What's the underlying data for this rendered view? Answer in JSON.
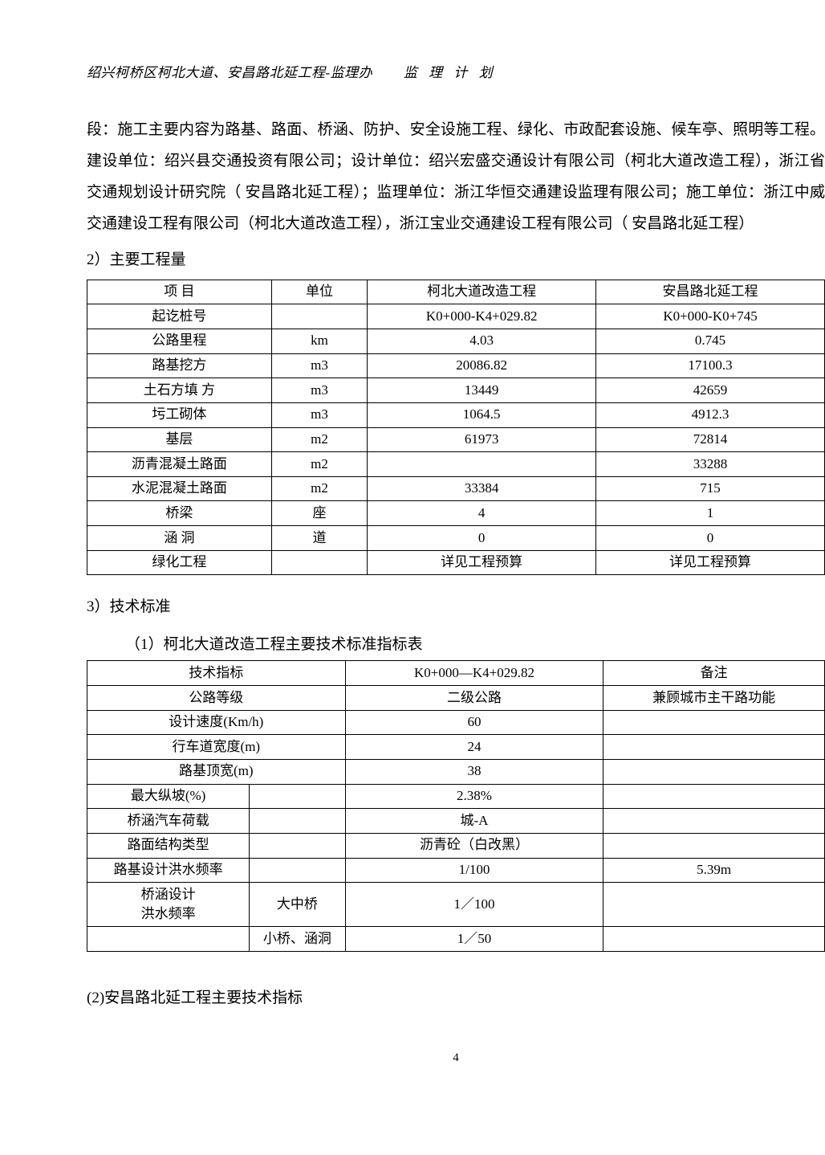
{
  "header": {
    "left": "绍兴柯桥区柯北大道、安昌路北延工程-监理办",
    "right": "监 理 计 划"
  },
  "paragraph": "段：施工主要内容为路基、路面、桥涵、防护、安全设施工程、绿化、市政配套设施、候车亭、照明等工程。建设单位：绍兴县交通投资有限公司；设计单位：绍兴宏盛交通设计有限公司（柯北大道改造工程），浙江省交通规划设计研究院（ 安昌路北延工程）；监理单位：浙江华恒交通建设监理有限公司；施工单位：浙江中威交通建设工程有限公司（柯北大道改造工程），浙江宝业交通建设工程有限公司（ 安昌路北延工程）",
  "section2_heading": "2）主要工程量",
  "table1": {
    "columns": [
      "项 目",
      "单位",
      "柯北大道改造工程",
      "安昌路北延工程"
    ],
    "col_widths": [
      "25%",
      "13%",
      "31%",
      "31%"
    ],
    "rows": [
      [
        "起讫桩号",
        "",
        "K0+000-K4+029.82",
        "K0+000-K0+745"
      ],
      [
        "公路里程",
        "km",
        "4.03",
        "0.745"
      ],
      [
        "路基挖方",
        "m3",
        "20086.82",
        "17100.3"
      ],
      [
        "土石方填 方",
        "m3",
        "13449",
        "42659"
      ],
      [
        "圬工砌体",
        "m3",
        "1064.5",
        "4912.3"
      ],
      [
        "基层",
        "m2",
        "61973",
        "72814"
      ],
      [
        "沥青混凝土路面",
        "m2",
        "",
        "33288"
      ],
      [
        "水泥混凝土路面",
        "m2",
        "33384",
        "715"
      ],
      [
        "桥梁",
        "座",
        "4",
        "1"
      ],
      [
        "涵 洞",
        "道",
        "0",
        "0"
      ],
      [
        "绿化工程",
        "",
        "详见工程预算",
        "详见工程预算"
      ]
    ]
  },
  "section3_heading": "3）技术标准",
  "table2_title": "（1）柯北大道改造工程主要技术标准指标表",
  "table2": {
    "columns": [
      "技术指标",
      "",
      "K0+000—K4+029.82",
      "备注"
    ],
    "col_widths": [
      "22%",
      "13%",
      "35%",
      "30%"
    ],
    "rows": [
      {
        "cells": [
          {
            "text": "公路等级",
            "colspan": 2
          },
          {
            "text": "二级公路"
          },
          {
            "text": "兼顾城市主干路功能"
          }
        ]
      },
      {
        "cells": [
          {
            "text": "设计速度(Km/h)",
            "colspan": 2
          },
          {
            "text": "60"
          },
          {
            "text": ""
          }
        ]
      },
      {
        "cells": [
          {
            "text": "行车道宽度(m)",
            "colspan": 2
          },
          {
            "text": "24"
          },
          {
            "text": ""
          }
        ]
      },
      {
        "cells": [
          {
            "text": "路基顶宽(m)",
            "colspan": 2
          },
          {
            "text": "38"
          },
          {
            "text": ""
          }
        ]
      },
      {
        "cells": [
          {
            "text": "最大纵坡(%)"
          },
          {
            "text": ""
          },
          {
            "text": "2.38%"
          },
          {
            "text": ""
          }
        ]
      },
      {
        "cells": [
          {
            "text": "桥涵汽车荷载"
          },
          {
            "text": ""
          },
          {
            "text": "城-A"
          },
          {
            "text": ""
          }
        ]
      },
      {
        "cells": [
          {
            "text": "路面结构类型"
          },
          {
            "text": ""
          },
          {
            "text": "沥青砼（白改黑）"
          },
          {
            "text": ""
          }
        ]
      },
      {
        "cells": [
          {
            "text": "路基设计洪水频率"
          },
          {
            "text": ""
          },
          {
            "text": "1/100"
          },
          {
            "text": "5.39m"
          }
        ]
      },
      {
        "cells": [
          {
            "text": "桥涵设计\n洪水频率"
          },
          {
            "text": "大中桥"
          },
          {
            "text": "1／100"
          },
          {
            "text": ""
          }
        ]
      },
      {
        "cells": [
          {
            "text": ""
          },
          {
            "text": "小桥、涵洞"
          },
          {
            "text": "1／50"
          },
          {
            "text": ""
          }
        ]
      }
    ]
  },
  "table3_title": "(2)安昌路北延工程主要技术指标",
  "page_number": "4"
}
